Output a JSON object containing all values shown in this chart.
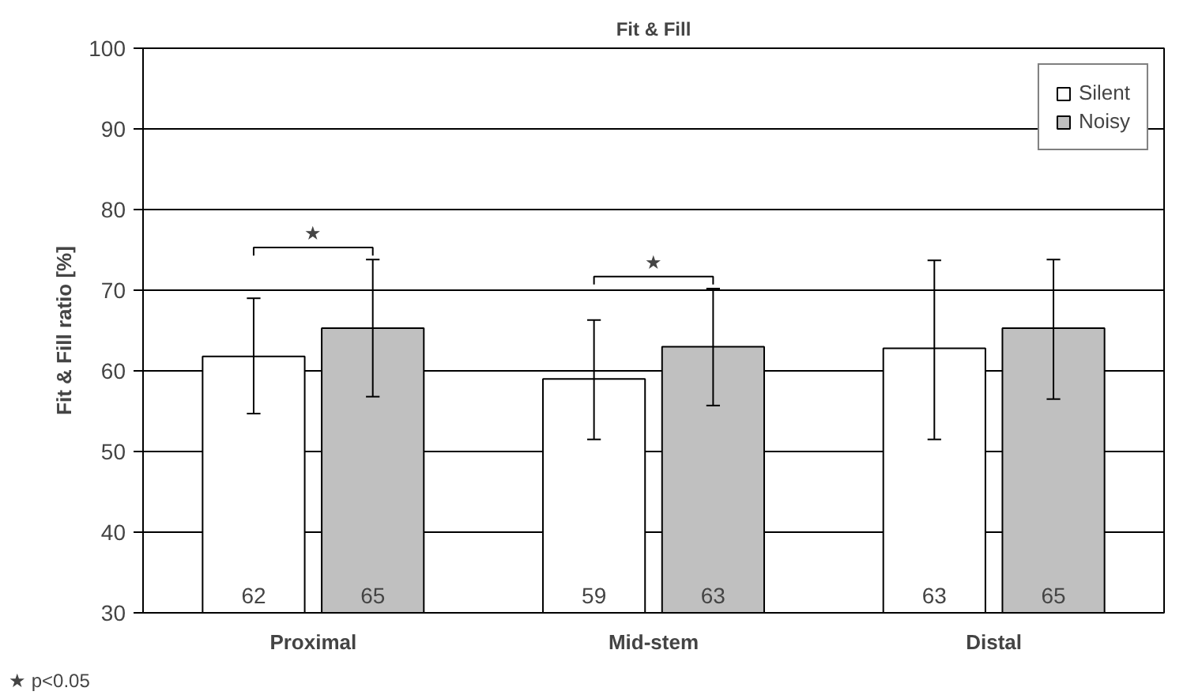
{
  "chart_data": {
    "type": "bar",
    "title": "Fit & Fill",
    "ylabel": "Fit & Fill ratio [%]",
    "categories": [
      "Proximal",
      "Mid-stem",
      "Distal"
    ],
    "series": [
      {
        "name": "Silent",
        "color": "#ffffff",
        "values": [
          61.8,
          59.0,
          62.8
        ],
        "value_labels": [
          "62",
          "59",
          "63"
        ],
        "errors": [
          [
            54.7,
            69.0
          ],
          [
            51.5,
            66.3
          ],
          [
            51.5,
            73.7
          ]
        ]
      },
      {
        "name": "Noisy",
        "color": "#c0c0c0",
        "values": [
          65.3,
          63.0,
          65.3
        ],
        "value_labels": [
          "65",
          "63",
          "65"
        ],
        "errors": [
          [
            56.8,
            73.8
          ],
          [
            55.7,
            70.2
          ],
          [
            56.5,
            73.8
          ]
        ]
      }
    ],
    "ylim": [
      30,
      100
    ],
    "yticks": [
      30,
      40,
      50,
      60,
      70,
      80,
      90,
      100
    ],
    "grid": "y",
    "legend": "top right",
    "annotations": [
      "★",
      "★",
      "★ p<0.05"
    ]
  }
}
